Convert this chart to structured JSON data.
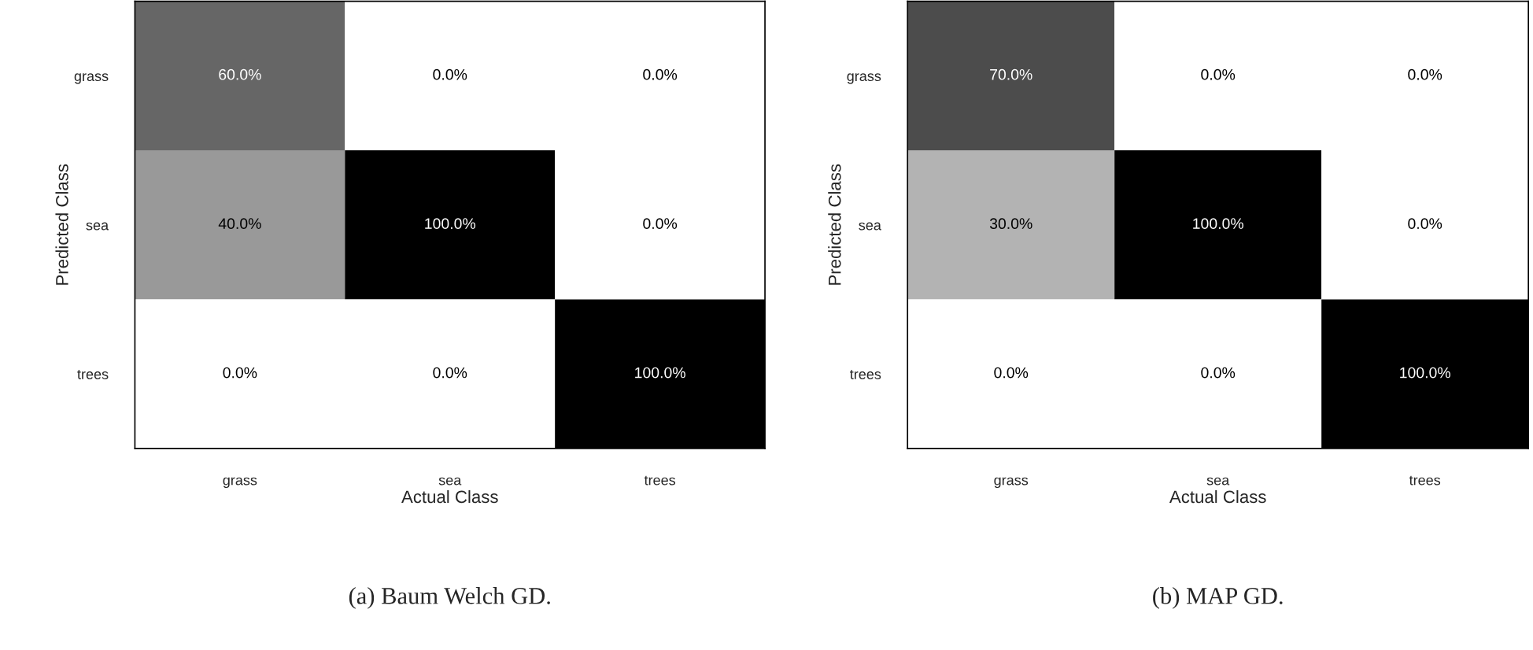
{
  "chart_data": [
    {
      "type": "heatmap",
      "categories": [
        "grass",
        "sea",
        "trees"
      ],
      "y_categories": [
        "grass",
        "sea",
        "trees"
      ],
      "cells": [
        [
          60.0,
          0.0,
          0.0
        ],
        [
          40.0,
          100.0,
          0.0
        ],
        [
          0.0,
          0.0,
          100.0
        ]
      ],
      "cell_labels": [
        [
          "60.0%",
          "0.0%",
          "0.0%"
        ],
        [
          "40.0%",
          "100.0%",
          "0.0%"
        ],
        [
          "0.0%",
          "0.0%",
          "100.0%"
        ]
      ],
      "xlabel": "Actual Class",
      "ylabel": "Predicted Class",
      "annotations": [
        "(a) Baum Welch GD."
      ]
    },
    {
      "type": "heatmap",
      "categories": [
        "grass",
        "sea",
        "trees"
      ],
      "y_categories": [
        "grass",
        "sea",
        "trees"
      ],
      "cells": [
        [
          70.0,
          0.0,
          0.0
        ],
        [
          30.0,
          100.0,
          0.0
        ],
        [
          0.0,
          0.0,
          100.0
        ]
      ],
      "cell_labels": [
        [
          "70.0%",
          "0.0%",
          "0.0%"
        ],
        [
          "30.0%",
          "100.0%",
          "0.0%"
        ],
        [
          "0.0%",
          "0.0%",
          "100.0%"
        ]
      ],
      "xlabel": "Actual Class",
      "ylabel": "Predicted Class",
      "annotations": [
        "(b) MAP GD."
      ]
    }
  ]
}
